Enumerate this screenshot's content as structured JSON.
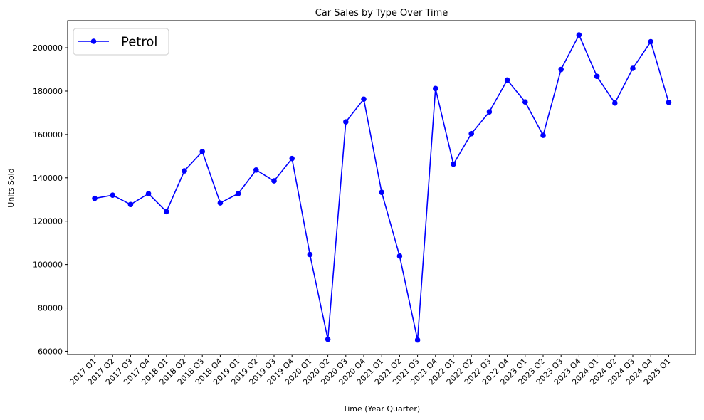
{
  "chart_data": {
    "type": "line",
    "title": "Car Sales by Type Over Time",
    "xlabel": "Time (Year Quarter)",
    "ylabel": "Units Sold",
    "categories": [
      "2017 Q1",
      "2017 Q2",
      "2017 Q3",
      "2017 Q4",
      "2018 Q1",
      "2018 Q2",
      "2018 Q3",
      "2018 Q4",
      "2019 Q1",
      "2019 Q2",
      "2019 Q3",
      "2019 Q4",
      "2020 Q1",
      "2020 Q2",
      "2020 Q3",
      "2020 Q4",
      "2021 Q1",
      "2021 Q2",
      "2021 Q3",
      "2021 Q4",
      "2022 Q1",
      "2022 Q2",
      "2022 Q3",
      "2022 Q4",
      "2023 Q1",
      "2023 Q2",
      "2023 Q3",
      "2023 Q4",
      "2024 Q1",
      "2024 Q2",
      "2024 Q3",
      "2024 Q4",
      "2025 Q1"
    ],
    "series": [
      {
        "name": "Petrol",
        "color": "#0000ff",
        "values": [
          130500,
          132000,
          127700,
          132700,
          124400,
          143200,
          152100,
          128400,
          132700,
          143600,
          138600,
          148900,
          104600,
          65500,
          165800,
          176300,
          133300,
          103900,
          65200,
          181200,
          146300,
          160400,
          170400,
          185100,
          175000,
          159600,
          190000,
          205900,
          186800,
          174500,
          190500,
          202800,
          174800
        ]
      }
    ],
    "ylim": [
      58500,
      212500
    ],
    "yticks": [
      60000,
      80000,
      100000,
      120000,
      140000,
      160000,
      180000,
      200000
    ],
    "grid": false,
    "legend": "top-left"
  }
}
